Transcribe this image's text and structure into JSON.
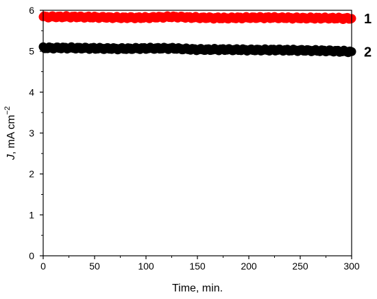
{
  "chart_data": {
    "type": "scatter",
    "xlabel": "Time, min.",
    "ylabel_italic": "J",
    "ylabel_rest": ", mA cm",
    "ylabel_sup": "−2",
    "xlim": [
      0,
      300
    ],
    "ylim": [
      0,
      6
    ],
    "xticks": [
      0,
      50,
      100,
      150,
      200,
      250,
      300
    ],
    "yticks": [
      0,
      1,
      2,
      3,
      4,
      5,
      6
    ],
    "grid": false,
    "series": [
      {
        "name": "1",
        "color": "#ff0000",
        "x": [
          0,
          25,
          50,
          75,
          100,
          125,
          150,
          175,
          200,
          225,
          250,
          275,
          300
        ],
        "y": [
          5.84,
          5.84,
          5.83,
          5.82,
          5.82,
          5.84,
          5.82,
          5.81,
          5.82,
          5.82,
          5.81,
          5.81,
          5.8
        ]
      },
      {
        "name": "2",
        "color": "#000000",
        "x": [
          0,
          25,
          50,
          75,
          100,
          125,
          150,
          175,
          200,
          225,
          250,
          275,
          300
        ],
        "y": [
          5.08,
          5.08,
          5.07,
          5.06,
          5.07,
          5.07,
          5.04,
          5.04,
          5.03,
          5.03,
          5.02,
          5.01,
          4.99
        ]
      }
    ]
  }
}
